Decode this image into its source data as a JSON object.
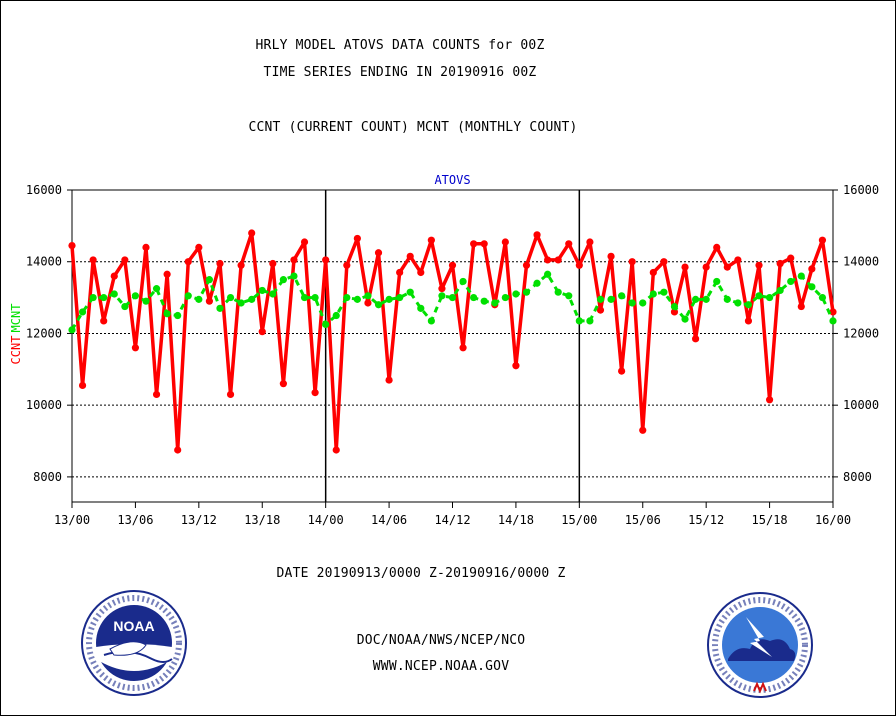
{
  "header": {
    "title_line1": "HRLY MODEL ATOVS DATA COUNTS for 00Z",
    "title_line2": "TIME SERIES ENDING IN 20190916 00Z",
    "subtitle": "CCNT (CURRENT COUNT) MCNT (MONTHLY COUNT)"
  },
  "footer": {
    "date_range": "DATE 20190913/0000 Z-20190916/0000 Z",
    "org": "DOC/NOAA/NWS/NCEP/NCO",
    "url": "WWW.NCEP.NOAA.GOV"
  },
  "logos": {
    "left_name": "NOAA",
    "left_ring": "NATIONAL OCEANIC AND ATMOSPHERIC ADMINISTRATION · U.S. DEPARTMENT OF COMMERCE",
    "right_ring": "NATIONAL WEATHER SERVICE"
  },
  "colors": {
    "ccnt": "#ff0000",
    "mcnt": "#00e000",
    "title_text": "#000000",
    "plot_label": "#0000cc",
    "date_text": "#ff0000",
    "footer_text": "#0000cc"
  },
  "chart_data": {
    "type": "line",
    "title": "ATOVS",
    "ylabel_left": "CCNT",
    "ylabel_right": "MCNT",
    "ylim": [
      7300,
      16000
    ],
    "y_ticks": [
      8000,
      10000,
      12000,
      14000,
      16000
    ],
    "y_tick_labels": [
      "8000",
      "10000",
      "12000",
      "14000",
      "16000"
    ],
    "x_tick_labels": [
      "13/00",
      "13/06",
      "13/12",
      "13/18",
      "14/00",
      "14/06",
      "14/12",
      "14/18",
      "15/00",
      "15/06",
      "15/12",
      "15/18",
      "16/00"
    ],
    "x_range_hours": [
      0,
      72
    ],
    "day_separators_hours": [
      24,
      48
    ],
    "grid_y": true,
    "series": [
      {
        "name": "CCNT",
        "color": "#ff0000",
        "style": "solid",
        "values": [
          14450,
          10550,
          14050,
          12350,
          13600,
          14050,
          11600,
          14400,
          10300,
          13650,
          8750,
          14000,
          14400,
          12900,
          13950,
          10300,
          13900,
          14800,
          12050,
          13950,
          10600,
          14050,
          14550,
          10350,
          14050,
          8750,
          13900,
          14650,
          12850,
          14250,
          10700,
          13700,
          14150,
          13700,
          14600,
          13250,
          13900,
          11600,
          14500,
          14500,
          12800,
          14550,
          11100,
          13900,
          14750,
          14050,
          14050,
          14500,
          13900,
          14550,
          12650,
          14150,
          10950,
          14000,
          9300,
          13700,
          14000,
          12600,
          13850,
          11850,
          13850,
          14400,
          13850,
          14050,
          12350,
          13900,
          10150,
          13950,
          14100,
          12750,
          13800,
          14600,
          12600
        ]
      },
      {
        "name": "MCNT",
        "color": "#00e000",
        "style": "dashed",
        "values": [
          12100,
          12600,
          13000,
          13000,
          13100,
          12750,
          13050,
          12900,
          13250,
          12550,
          12500,
          13050,
          12950,
          13500,
          12700,
          13000,
          12850,
          12950,
          13200,
          13100,
          13500,
          13600,
          13000,
          13000,
          12250,
          12500,
          13000,
          12950,
          13050,
          12800,
          12950,
          13000,
          13150,
          12700,
          12350,
          13050,
          13000,
          13450,
          13000,
          12900,
          12850,
          13000,
          13100,
          13150,
          13400,
          13650,
          13150,
          13050,
          12350,
          12350,
          12950,
          12950,
          13050,
          12850,
          12850,
          13100,
          13150,
          12750,
          12400,
          12950,
          12950,
          13450,
          12950,
          12850,
          12800,
          13050,
          13000,
          13200,
          13450,
          13600,
          13300,
          13000,
          12350
        ]
      }
    ]
  }
}
